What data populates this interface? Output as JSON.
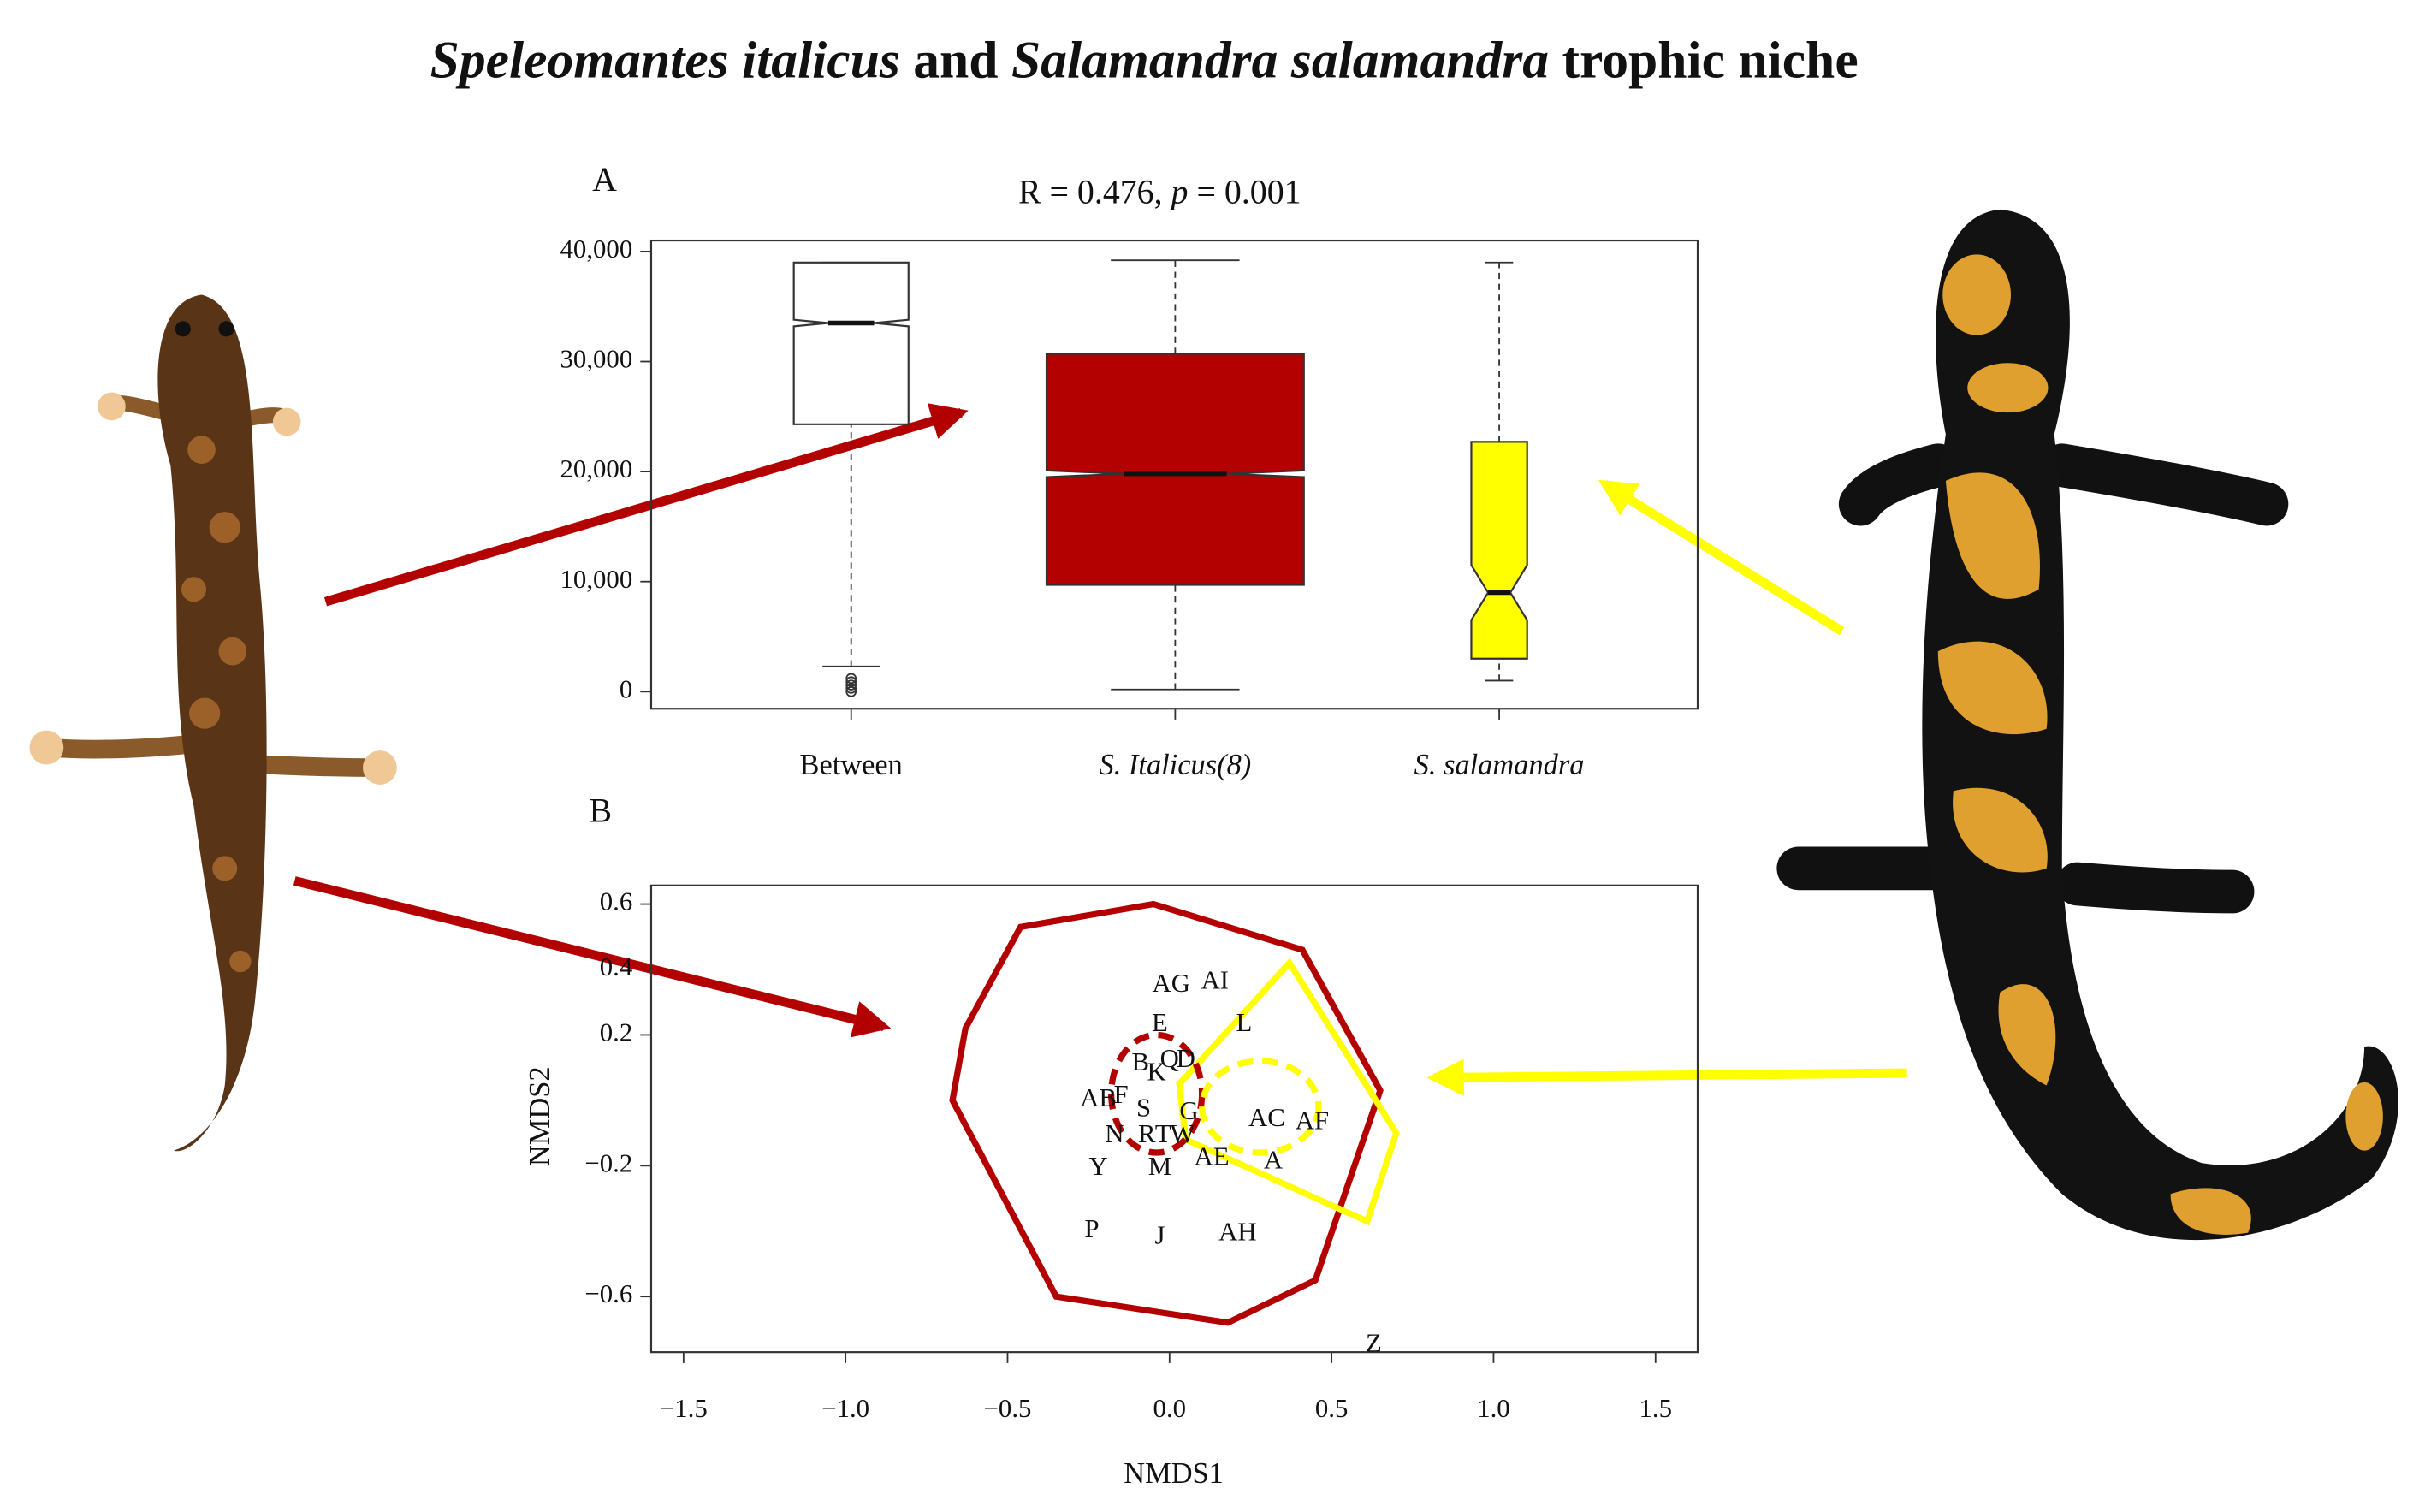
{
  "title": [
    "Speleomantes italicus",
    " and ",
    "Salamandra salamandra",
    " trophic niche"
  ],
  "chart_data": [
    {
      "type": "box",
      "panel": "A",
      "annotation": [
        "R =  0.476, ",
        "p",
        " =  0.001"
      ],
      "categories": [
        "Between",
        "S. Italicus(8)",
        "S. salamandra"
      ],
      "italic": [
        false,
        true,
        true
      ],
      "ylim": [
        -1550,
        41000
      ],
      "yticks": [
        0,
        {
          "value": 10000,
          "label": "10,000"
        },
        {
          "value": 20000,
          "label": "20,000"
        },
        {
          "value": 30000,
          "label": "30,000"
        },
        {
          "value": 40000,
          "label": "40,000"
        }
      ],
      "boxes": [
        {
          "color": "#ffffff",
          "whisker_low": 2300,
          "q1": 24300,
          "median": 33500,
          "q3": 39000,
          "whisker_high": 39000,
          "notch": [
            33200,
            33800
          ],
          "outliers": [
            0,
            300,
            600,
            900,
            1200
          ]
        },
        {
          "color": "#b30000",
          "whisker_low": 200,
          "q1": 9700,
          "median": 19800,
          "q3": 30700,
          "whisker_high": 39200,
          "notch": [
            19500,
            20100
          ],
          "outliers": []
        },
        {
          "color": "#ffff00",
          "whisker_low": 1000,
          "q1": 3000,
          "median": 9000,
          "q3": 22700,
          "whisker_high": 39000,
          "notch": [
            6500,
            11500
          ],
          "outliers": []
        }
      ]
    },
    {
      "type": "scatter",
      "panel": "B",
      "xlabel": "NMDS1",
      "ylabel": "NMDS2",
      "xlim": [
        -1.6,
        1.63
      ],
      "ylim": [
        -0.77,
        0.657
      ],
      "xticks": [
        {
          "value": -1.5,
          "label": "−1.5"
        },
        {
          "value": -1,
          "label": "−1.0"
        },
        {
          "value": -0.5,
          "label": "−0.5"
        },
        {
          "value": 0,
          "label": "0.0"
        },
        0.5,
        {
          "value": 1,
          "label": "1.0"
        },
        1.5
      ],
      "yticks": [
        0.6,
        0.4,
        0.2,
        {
          "value": -0.2,
          "label": "−0.2"
        },
        {
          "value": -0.6,
          "label": "−0.6"
        }
      ],
      "points": {
        "labels": [
          "AG",
          "AI",
          "E",
          "L",
          "B",
          "Q",
          "D",
          "K",
          "AB",
          "F",
          "S",
          "G",
          "AC",
          "AF",
          "N",
          "R",
          "T",
          "W",
          "AE",
          "A",
          "Y",
          "M",
          "P",
          "J",
          "AH",
          "Z"
        ],
        "x": [
          0.005,
          0.14,
          -0.03,
          0.23,
          -0.09,
          0,
          0.05,
          -0.04,
          -0.22,
          -0.15,
          -0.08,
          0.06,
          0.3,
          0.44,
          -0.17,
          -0.07,
          -0.02,
          0.04,
          0.13,
          0.32,
          -0.22,
          -0.03,
          -0.24,
          -0.03,
          0.21,
          0.63
        ],
        "y": [
          0.35,
          0.36,
          0.23,
          0.23,
          0.11,
          0.12,
          0.12,
          0.08,
          0,
          0.01,
          -0.03,
          -0.04,
          -0.06,
          -0.07,
          -0.11,
          -0.11,
          -0.11,
          -0.11,
          -0.18,
          -0.19,
          -0.21,
          -0.21,
          -0.4,
          -0.42,
          -0.41,
          -0.75
        ]
      },
      "hulls": [
        {
          "color": "#b30000",
          "x": [
            -0.46,
            -0.05,
            0.41,
            0.65,
            0.45,
            0.18,
            -0.35,
            -0.67,
            -0.63
          ],
          "y": [
            0.53,
            0.6,
            0.46,
            0.03,
            -0.55,
            -0.68,
            -0.6,
            0,
            0.22
          ]
        },
        {
          "color": "#ffff00",
          "x": [
            0.37,
            0.7,
            0.61,
            0.05,
            0.03
          ],
          "y": [
            0.42,
            -0.1,
            -0.37,
            -0.12,
            0.05
          ]
        }
      ],
      "ellipses": [
        {
          "color": "#b30000",
          "cx": -0.04,
          "cy": 0.02,
          "rx": 0.14,
          "ry": 0.18
        },
        {
          "color": "#ffff00",
          "cx": 0.28,
          "cy": -0.02,
          "rx": 0.18,
          "ry": 0.14
        }
      ]
    }
  ]
}
